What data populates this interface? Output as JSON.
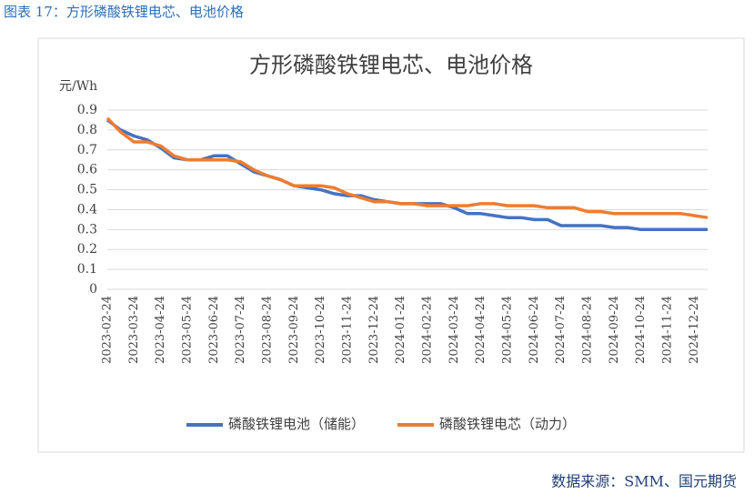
{
  "chart_data": {
    "type": "line",
    "caption": "图表 17：方形磷酸铁锂电芯、电池价格",
    "title": "方形磷酸铁锂电芯、电池价格",
    "y_label": "元/Wh",
    "source": "数据来源：SMM、国元期货",
    "categories": [
      "2023-02-24",
      null,
      "2023-03-24",
      null,
      "2023-04-24",
      null,
      "2023-05-24",
      null,
      "2023-06-24",
      null,
      "2023-07-24",
      null,
      "2023-08-24",
      null,
      "2023-09-24",
      null,
      "2023-10-24",
      null,
      "2023-11-24",
      null,
      "2023-12-24",
      null,
      "2024-01-24",
      null,
      "2024-02-24",
      null,
      "2024-03-24",
      null,
      "2024-04-24",
      null,
      "2024-05-24",
      null,
      "2024-06-24",
      null,
      "2024-07-24",
      null,
      "2024-08-24",
      null,
      "2024-09-24",
      null,
      "2024-10-24",
      null,
      "2024-11-24",
      null,
      "2024-12-24",
      null
    ],
    "series": [
      {
        "name": "磷酸铁锂电池（储能）",
        "color": "#4472c4",
        "values": [
          0.85,
          0.8,
          0.77,
          0.75,
          0.71,
          0.66,
          0.65,
          0.65,
          0.67,
          0.67,
          0.63,
          0.59,
          0.57,
          0.55,
          0.52,
          0.51,
          0.5,
          0.48,
          0.47,
          0.47,
          0.45,
          0.44,
          0.43,
          0.43,
          0.43,
          0.43,
          0.41,
          0.38,
          0.38,
          0.37,
          0.36,
          0.36,
          0.35,
          0.35,
          0.32,
          0.32,
          0.32,
          0.32,
          0.31,
          0.31,
          0.3,
          0.3,
          0.3,
          0.3,
          0.3,
          0.3
        ]
      },
      {
        "name": "磷酸铁锂电芯（动力）",
        "color": "#ed7d31",
        "values": [
          0.86,
          0.79,
          0.74,
          0.74,
          0.72,
          0.67,
          0.65,
          0.65,
          0.65,
          0.65,
          0.64,
          0.6,
          0.57,
          0.55,
          0.52,
          0.52,
          0.52,
          0.51,
          0.48,
          0.46,
          0.44,
          0.44,
          0.43,
          0.43,
          0.42,
          0.42,
          0.42,
          0.42,
          0.43,
          0.43,
          0.42,
          0.42,
          0.42,
          0.41,
          0.41,
          0.41,
          0.39,
          0.39,
          0.38,
          0.38,
          0.38,
          0.38,
          0.38,
          0.38,
          0.37,
          0.36
        ]
      }
    ],
    "ylim": [
      0,
      0.9
    ],
    "yticks": [
      0,
      0.1,
      0.2,
      0.3,
      0.4,
      0.5,
      0.6,
      0.7,
      0.8,
      0.9
    ],
    "grid": true,
    "legend": "bottom"
  }
}
